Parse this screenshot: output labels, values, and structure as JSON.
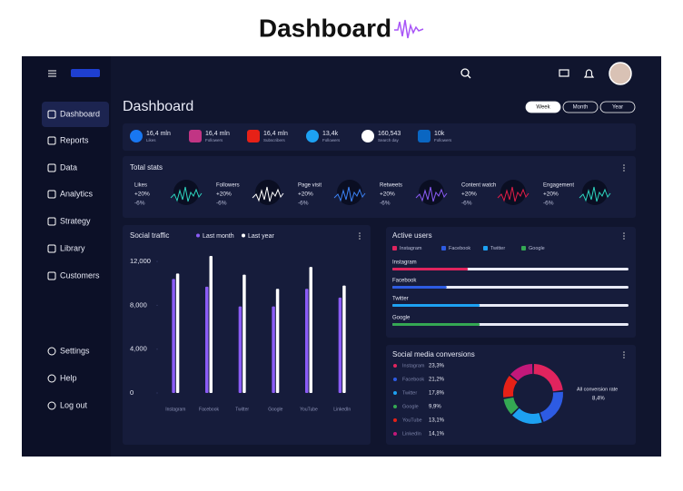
{
  "header": {
    "title": "Dashboard"
  },
  "sidebar": {
    "items": [
      "Dashboard",
      "Reports",
      "Data",
      "Analytics",
      "Strategy",
      "Library",
      "Customers"
    ],
    "bottom_items": [
      "Settings",
      "Help",
      "Log out"
    ]
  },
  "main": {
    "title": "Dashboard",
    "periods": [
      "Week",
      "Month",
      "Year"
    ]
  },
  "social_row": [
    {
      "value": "16,4 mln",
      "label": "Likes"
    },
    {
      "value": "16,4 mln",
      "label": "Followers"
    },
    {
      "value": "16,4 mln",
      "label": "Subscribers"
    },
    {
      "value": "13,4k",
      "label": "Followers"
    },
    {
      "value": "160,543",
      "label": "Search day"
    },
    {
      "value": "10k",
      "label": "Followers"
    }
  ],
  "total_stats": {
    "title": "Total stats",
    "items": [
      {
        "name": "Likes",
        "up": "+20%",
        "down": "-6%"
      },
      {
        "name": "Followers",
        "up": "+20%",
        "down": "-6%"
      },
      {
        "name": "Page visit",
        "up": "+20%",
        "down": "-6%"
      },
      {
        "name": "Retweets",
        "up": "+20%",
        "down": "-6%"
      },
      {
        "name": "Content watch",
        "up": "+20%",
        "down": "-6%"
      },
      {
        "name": "Engagement",
        "up": "+20%",
        "down": "-6%"
      }
    ]
  },
  "social_traffic": {
    "type": "bar",
    "title": "Social traffic",
    "categories": [
      "Instagram",
      "Facebook",
      "Twitter",
      "Google",
      "YouTube",
      "LinkedIn"
    ],
    "series": [
      {
        "name": "Last month",
        "color": "#8b5cf6",
        "values": [
          10400,
          9700,
          7900,
          7900,
          9500,
          8700
        ]
      },
      {
        "name": "Last year",
        "color": "#ffffff",
        "values": [
          10900,
          12500,
          10800,
          9500,
          11500,
          9800
        ]
      }
    ],
    "ylim": [
      0,
      13000
    ],
    "yticks": [
      {
        "value": 12000,
        "label": "12,000"
      },
      {
        "value": 8000,
        "label": "8,000"
      },
      {
        "value": 4000,
        "label": "4,000"
      },
      0
    ]
  },
  "active_users": {
    "title": "Active users",
    "series": [
      {
        "name": "Instagram",
        "color": "#e0245e",
        "value": 32
      },
      {
        "name": "Facebook",
        "color": "#2d5be3",
        "value": 23
      },
      {
        "name": "Twitter",
        "color": "#1da1f2",
        "value": 37
      },
      {
        "name": "Google",
        "color": "#34a853",
        "value": 37
      }
    ]
  },
  "conversions": {
    "title": "Social media conversions",
    "items": [
      {
        "name": "Instagram",
        "value": 23.3,
        "label": "23,3%",
        "color": "#e0245e"
      },
      {
        "name": "Facebook",
        "value": 21.2,
        "label": "21,2%",
        "color": "#2d5be3"
      },
      {
        "name": "Twitter",
        "value": 17.8,
        "label": "17,8%",
        "color": "#1da1f2"
      },
      {
        "name": "Google",
        "value": 9.9,
        "label": "9,9%",
        "color": "#34a853"
      },
      {
        "name": "YouTube",
        "value": 13.1,
        "label": "13,1%",
        "color": "#e62117"
      },
      {
        "name": "LinkedIn",
        "value": 14.1,
        "label": "14,1%",
        "color": "#c2187a"
      }
    ],
    "total_label": "All conversion rate",
    "total": "8,4%"
  }
}
